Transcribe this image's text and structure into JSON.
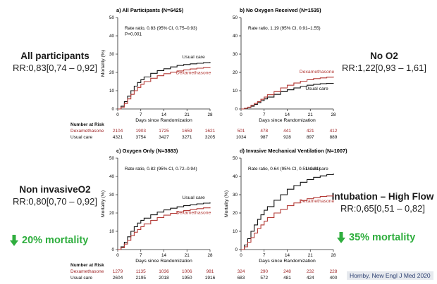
{
  "labels": {
    "all": {
      "title": "All participants",
      "rr": "RR:0,83[0,74 – 0,92]"
    },
    "noo2": {
      "title": "No O2",
      "rr": "RR:1,22[0,93 – 1,61]"
    },
    "noninv": {
      "title": "Non invasiveO2",
      "rr": "RR:0,80[0,70 – 0,92]"
    },
    "intub": {
      "title": "Intubation – High Flow",
      "rr": "RR:0,65[0,51 – 0,82]"
    },
    "mort20": "20% mortality",
    "mort35": "35% mortality"
  },
  "citation": "Hornby, New Engl J Med 2020",
  "colors": {
    "usual": "#111111",
    "dexa": "#b33a36",
    "green": "#2fae3e"
  },
  "chart_data": [
    {
      "type": "line",
      "title": "a) All Participants (N=6425)",
      "stats": [
        "Rate ratio, 0.83 (95% CI, 0.75–0.93)",
        "P<0.001"
      ],
      "xlabel": "Days since Randomization",
      "ylabel": "Mortality (%)",
      "xlim": [
        0,
        28
      ],
      "ylim": [
        0,
        50
      ],
      "xticks": [
        "0",
        "7",
        "14",
        "21",
        "28"
      ],
      "yticks": [
        "0",
        "10",
        "20",
        "30",
        "40",
        "50"
      ],
      "x": [
        0,
        1,
        2,
        3,
        4,
        5,
        6,
        7,
        8,
        10,
        12,
        14,
        16,
        18,
        20,
        22,
        24,
        26,
        28
      ],
      "series": [
        {
          "name": "Usual care",
          "values": [
            0,
            1.5,
            4,
            7,
            10,
            12.5,
            14.5,
            16,
            17.5,
            19.5,
            21,
            22,
            23,
            23.8,
            24.3,
            24.7,
            25,
            25.3,
            25.7
          ]
        },
        {
          "name": "Dexamethasone",
          "values": [
            0,
            1,
            3,
            5.5,
            8,
            10,
            11.8,
            13.5,
            15,
            16.8,
            18.2,
            19.3,
            20.1,
            20.8,
            21.4,
            21.9,
            22.3,
            22.6,
            22.9
          ]
        }
      ],
      "risk_table": {
        "header": "Number at Risk",
        "rows": [
          {
            "label": "Dexamethasone",
            "values": [
              "2104",
              "1903",
              "1725",
              "1659",
              "1621"
            ]
          },
          {
            "label": "Usual care",
            "values": [
              "4321",
              "3754",
              "3427",
              "3271",
              "3205"
            ]
          }
        ]
      }
    },
    {
      "type": "line",
      "title": "b) No Oxygen Received (N=1535)",
      "stats": [
        "Rate ratio, 1.19 (95% CI, 0.91–1.55)"
      ],
      "xlabel": "Days since Randomization",
      "ylabel": "",
      "xlim": [
        0,
        28
      ],
      "ylim": [
        0,
        50
      ],
      "xticks": [
        "0",
        "7",
        "14",
        "21",
        "28"
      ],
      "yticks": [
        "0",
        "10",
        "20",
        "30",
        "40",
        "50"
      ],
      "x": [
        0,
        1,
        2,
        3,
        4,
        5,
        6,
        7,
        8,
        10,
        12,
        14,
        16,
        18,
        20,
        22,
        24,
        26,
        28
      ],
      "series": [
        {
          "name": "Usual care",
          "values": [
            0,
            0.3,
            0.8,
            1.5,
            2.5,
            3.5,
            4.5,
            5.5,
            6.5,
            8,
            9.5,
            10.5,
            11.5,
            12.3,
            13,
            13.5,
            13.8,
            14,
            14.2
          ]
        },
        {
          "name": "Dexamethasone",
          "values": [
            0,
            0.4,
            1,
            2,
            3,
            4,
            5.3,
            6.5,
            7.8,
            9.5,
            11.5,
            13,
            14.2,
            15.2,
            16,
            16.6,
            17,
            17.4,
            17.7
          ]
        }
      ],
      "risk_table": {
        "header": "",
        "rows": [
          {
            "label": "",
            "values": [
              "501",
              "478",
              "441",
              "421",
              "412"
            ]
          },
          {
            "label": "",
            "values": [
              "1034",
              "987",
              "928",
              "897",
              "889"
            ]
          }
        ]
      }
    },
    {
      "type": "line",
      "title": "c) Oxygen Only (N=3883)",
      "stats": [
        "Rate ratio, 0.82 (95% CI, 0.72–0.94)"
      ],
      "xlabel": "Days since Randomization",
      "ylabel": "Mortality (%)",
      "xlim": [
        0,
        28
      ],
      "ylim": [
        0,
        50
      ],
      "xticks": [
        "0",
        "7",
        "14",
        "21",
        "28"
      ],
      "yticks": [
        "0",
        "10",
        "20",
        "30",
        "40",
        "50"
      ],
      "x": [
        0,
        1,
        2,
        3,
        4,
        5,
        6,
        7,
        8,
        10,
        12,
        14,
        16,
        18,
        20,
        22,
        24,
        26,
        28
      ],
      "series": [
        {
          "name": "Usual care",
          "values": [
            0,
            1.5,
            4,
            7,
            10,
            12.5,
            14.5,
            16,
            17.2,
            19,
            20.5,
            21.7,
            22.6,
            23.4,
            24,
            24.5,
            25,
            25.4,
            25.8
          ]
        },
        {
          "name": "Dexamethasone",
          "values": [
            0,
            1,
            3,
            5,
            7.5,
            9.5,
            11,
            12.5,
            14,
            16,
            17.5,
            18.8,
            19.8,
            20.6,
            21.3,
            21.9,
            22.4,
            22.8,
            23.2
          ]
        }
      ],
      "risk_table": {
        "header": "Number at Risk",
        "rows": [
          {
            "label": "Dexamethasone",
            "values": [
              "1279",
              "1135",
              "1036",
              "1006",
              "981"
            ]
          },
          {
            "label": "Usual care",
            "values": [
              "2604",
              "2195",
              "2018",
              "1950",
              "1916"
            ]
          }
        ]
      }
    },
    {
      "type": "line",
      "title": "d) Invasive Mechanical Ventilation (N=1007)",
      "stats": [
        "Rate ratio, 0.64 (95% CI, 0.51–0.81)"
      ],
      "xlabel": "Days since Randomization",
      "ylabel": "Mortality (%)",
      "xlim": [
        0,
        28
      ],
      "ylim": [
        0,
        50
      ],
      "xticks": [
        "0",
        "7",
        "14",
        "21",
        "28"
      ],
      "yticks": [
        "0",
        "10",
        "20",
        "30",
        "40",
        "50"
      ],
      "x": [
        0,
        1,
        2,
        3,
        4,
        5,
        6,
        7,
        8,
        10,
        12,
        14,
        16,
        18,
        20,
        22,
        24,
        26,
        28
      ],
      "series": [
        {
          "name": "Usual care",
          "values": [
            0,
            2.5,
            6,
            10,
            13.5,
            16.5,
            19,
            21.5,
            23.5,
            27,
            30,
            33,
            35,
            36.8,
            38.3,
            39.5,
            40.3,
            41,
            41.6
          ]
        },
        {
          "name": "Dexamethasone",
          "values": [
            0,
            1.5,
            4,
            6.5,
            9,
            11.5,
            13.5,
            15.5,
            17.5,
            20,
            22,
            24,
            25.5,
            26.8,
            27.8,
            28.5,
            29,
            29.3,
            29.6
          ]
        }
      ],
      "risk_table": {
        "header": "",
        "rows": [
          {
            "label": "",
            "values": [
              "324",
              "290",
              "248",
              "232",
              "228"
            ]
          },
          {
            "label": "",
            "values": [
              "683",
              "572",
              "481",
              "424",
              "400"
            ]
          }
        ]
      }
    }
  ]
}
